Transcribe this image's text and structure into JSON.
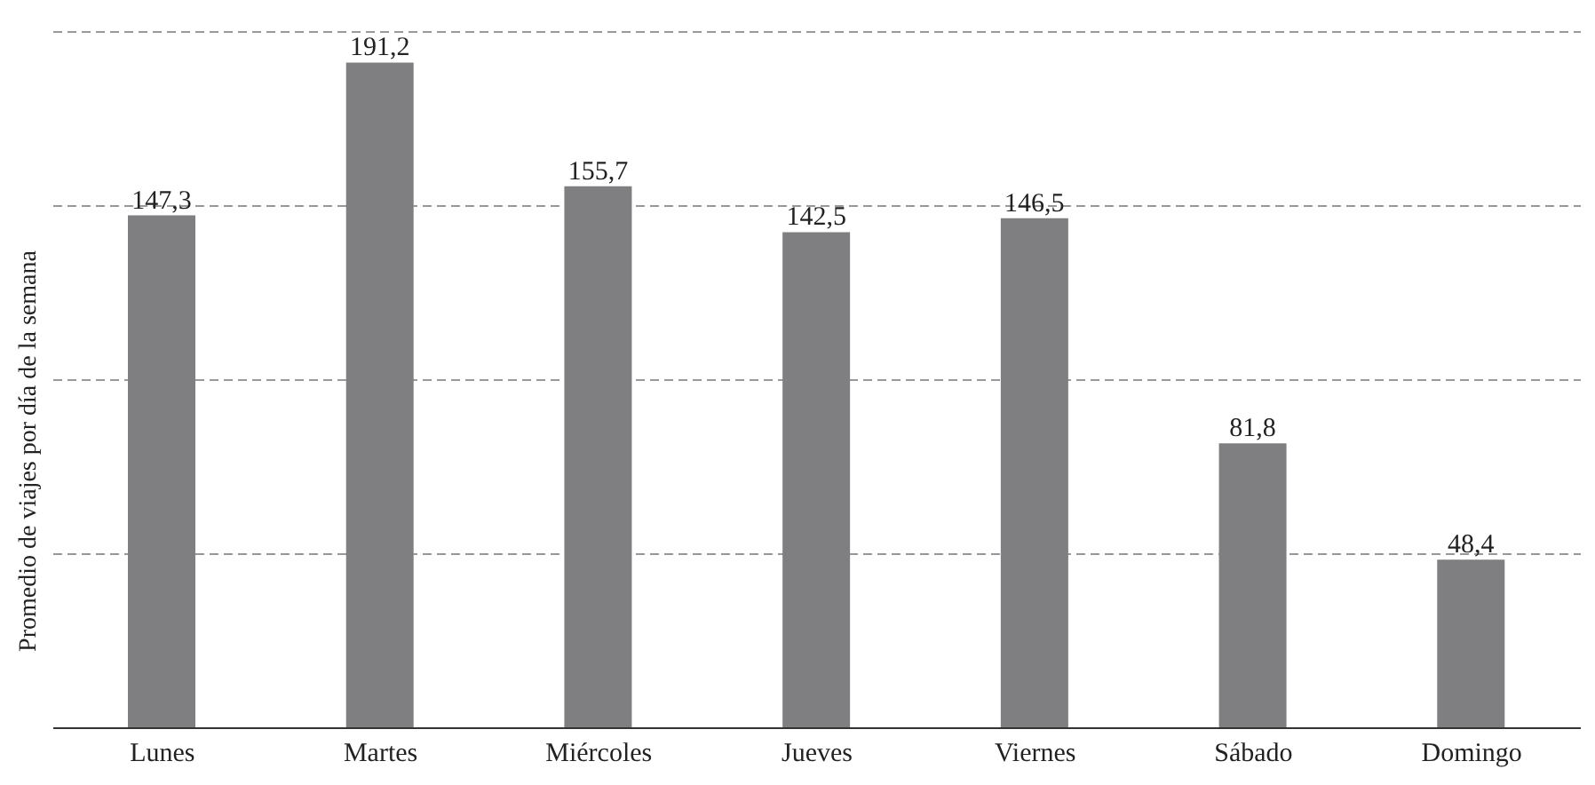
{
  "chart_data": {
    "type": "bar",
    "ylabel": "Promedio de viajes por día de la semana",
    "categories": [
      "Lunes",
      "Martes",
      "Miércoles",
      "Jueves",
      "Viernes",
      "Sábado",
      "Domingo"
    ],
    "values": [
      147.3,
      191.2,
      155.7,
      142.5,
      146.5,
      81.8,
      48.4
    ],
    "value_labels": [
      "147,3",
      "191,2",
      "155,7",
      "142,5",
      "146,5",
      "81,8",
      "48,4"
    ],
    "color": "#7f7f82",
    "grid": "y",
    "tick_labels": "x",
    "legend": false
  }
}
